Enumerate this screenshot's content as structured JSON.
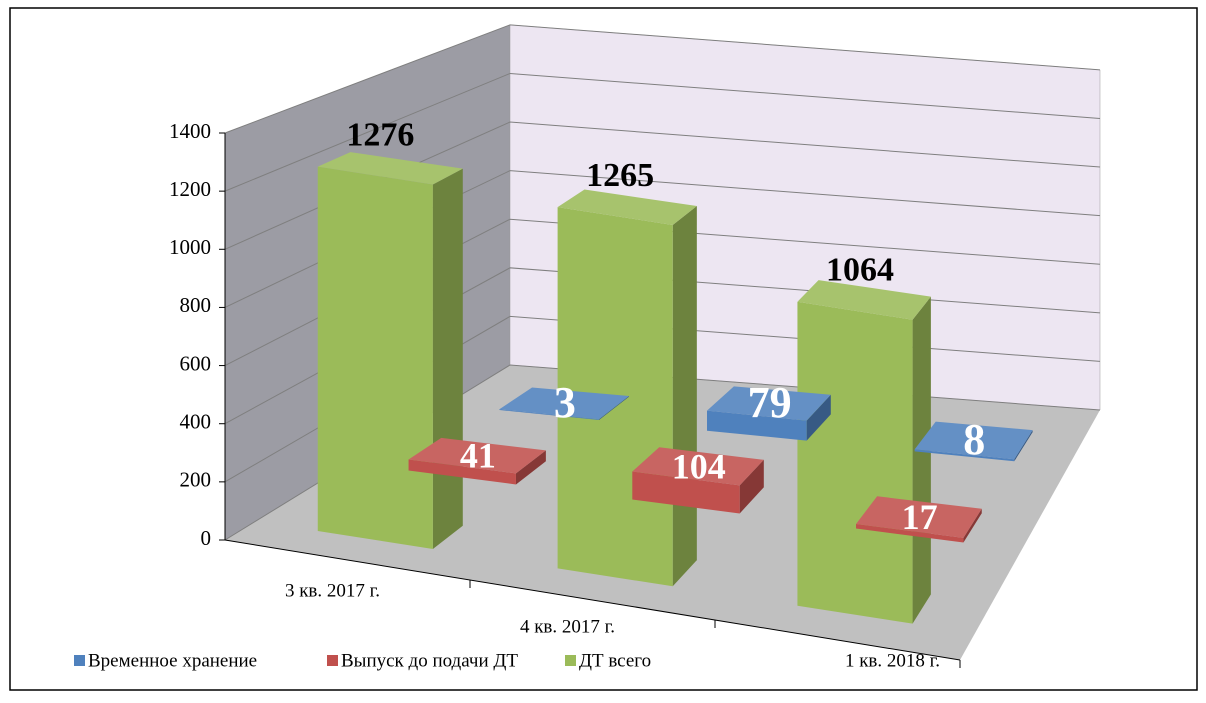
{
  "chart_data": {
    "type": "bar3d",
    "categories": [
      "3 кв. 2017 г.",
      "4 кв. 2017 г.",
      "1 кв. 2018 г."
    ],
    "series": [
      {
        "name": "Временное хранение",
        "color": "#4f81bd",
        "values": [
          3,
          79,
          8
        ]
      },
      {
        "name": "Выпуск до подачи ДТ",
        "color": "#c0504d",
        "values": [
          41,
          104,
          17
        ]
      },
      {
        "name": "ДТ всего",
        "color": "#9bbb59",
        "values": [
          1276,
          1265,
          1064
        ]
      }
    ],
    "ylim": [
      0,
      1400
    ],
    "yticks": [
      0,
      200,
      400,
      600,
      800,
      1000,
      1200,
      1400
    ],
    "grid": true,
    "legend": "bottom"
  }
}
